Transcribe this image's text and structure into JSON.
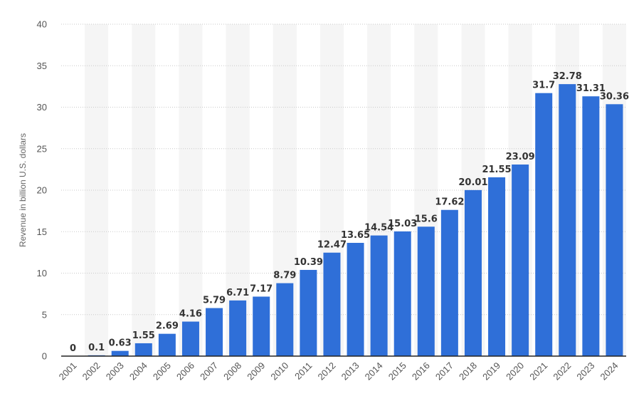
{
  "chart_data": {
    "type": "bar",
    "categories": [
      "2001",
      "2002",
      "2003",
      "2004",
      "2005",
      "2006",
      "2007",
      "2008",
      "2009",
      "2010",
      "2011",
      "2012",
      "2013",
      "2014",
      "2015",
      "2016",
      "2017",
      "2018",
      "2019",
      "2020",
      "2021",
      "2022",
      "2023",
      "2024"
    ],
    "values": [
      0,
      0.1,
      0.63,
      1.55,
      2.69,
      4.16,
      5.79,
      6.71,
      7.17,
      8.79,
      10.39,
      12.47,
      13.65,
      14.54,
      15.03,
      15.6,
      17.62,
      20.01,
      21.55,
      23.09,
      31.7,
      32.78,
      31.31,
      30.36
    ],
    "value_labels": [
      "0",
      "0.1",
      "0.63",
      "1.55",
      "2.69",
      "4.16",
      "5.79",
      "6.71",
      "7.17",
      "8.79",
      "10.39",
      "12.47",
      "13.65",
      "14.54",
      "15.03",
      "15.6",
      "17.62",
      "20.01",
      "21.55",
      "23.09",
      "31.7",
      "32.78",
      "31.31",
      "30.36"
    ],
    "ylabel": "Revenue in billion U.S. dollars",
    "xlabel": "",
    "ylim": [
      0,
      40
    ],
    "yticks": [
      0,
      5,
      10,
      15,
      20,
      25,
      30,
      35,
      40
    ],
    "ytick_labels": [
      "0",
      "5",
      "10",
      "15",
      "20",
      "25",
      "30",
      "35",
      "40"
    ],
    "grid": true,
    "bar_color": "#2f6fd8",
    "band_color": "#f5f5f5"
  }
}
